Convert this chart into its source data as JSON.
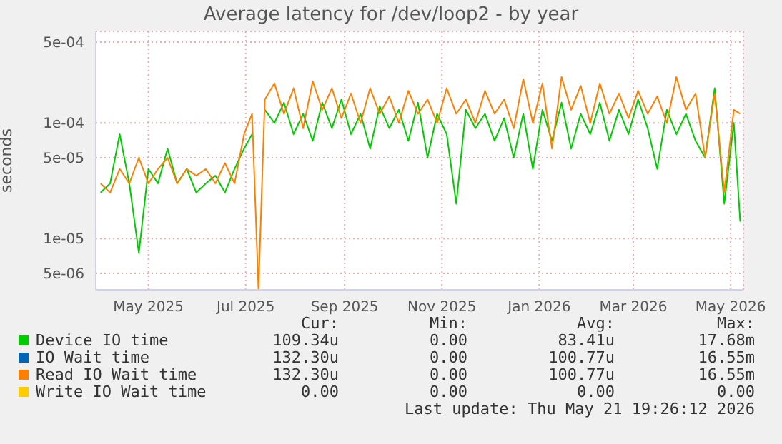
{
  "chart_data": {
    "type": "line",
    "title": "Average latency for /dev/loop2 - by year",
    "ylabel": "seconds",
    "log": "y",
    "grid": true,
    "legend": "bottom",
    "marker": "none",
    "x": [
      "2025-04-01",
      "2025-04-07",
      "2025-04-13",
      "2025-04-19",
      "2025-04-25",
      "2025-05-01",
      "2025-05-07",
      "2025-05-13",
      "2025-05-19",
      "2025-05-25",
      "2025-05-31",
      "2025-06-06",
      "2025-06-12",
      "2025-06-18",
      "2025-06-24",
      "2025-06-30",
      "2025-07-05",
      "2025-07-09",
      "2025-07-13",
      "2025-07-19",
      "2025-07-25",
      "2025-07-31",
      "2025-08-06",
      "2025-08-12",
      "2025-08-18",
      "2025-08-24",
      "2025-08-30",
      "2025-09-05",
      "2025-09-11",
      "2025-09-17",
      "2025-09-23",
      "2025-09-29",
      "2025-10-05",
      "2025-10-11",
      "2025-10-17",
      "2025-10-23",
      "2025-10-29",
      "2025-11-04",
      "2025-11-10",
      "2025-11-16",
      "2025-11-22",
      "2025-11-28",
      "2025-12-04",
      "2025-12-10",
      "2025-12-16",
      "2025-12-22",
      "2025-12-28",
      "2026-01-03",
      "2026-01-09",
      "2026-01-15",
      "2026-01-21",
      "2026-01-27",
      "2026-02-02",
      "2026-02-08",
      "2026-02-14",
      "2026-02-20",
      "2026-02-26",
      "2026-03-04",
      "2026-03-10",
      "2026-03-16",
      "2026-03-22",
      "2026-03-28",
      "2026-04-03",
      "2026-04-09",
      "2026-04-15",
      "2026-04-21",
      "2026-04-27",
      "2026-05-03",
      "2026-05-07"
    ],
    "xlim": [
      "2025-03-29",
      "2026-05-09"
    ],
    "xticks": [
      {
        "value": "2025-05-01",
        "label": "May 2025"
      },
      {
        "value": "2025-07-01",
        "label": "Jul 2025"
      },
      {
        "value": "2025-09-01",
        "label": "Sep 2025"
      },
      {
        "value": "2025-11-01",
        "label": "Nov 2025"
      },
      {
        "value": "2026-01-01",
        "label": "Jan 2026"
      },
      {
        "value": "2026-03-01",
        "label": "Mar 2026"
      },
      {
        "value": "2026-05-01",
        "label": "May 2026"
      }
    ],
    "ylim": [
      3.6e-06,
      0.00062
    ],
    "yticks": [
      {
        "value": 5e-06,
        "label": "5e-06"
      },
      {
        "value": 1e-05,
        "label": "1e-05"
      },
      {
        "value": 5e-05,
        "label": "5e-05"
      },
      {
        "value": 0.0001,
        "label": "1e-04"
      },
      {
        "value": 0.0005,
        "label": "5e-04"
      }
    ],
    "series": [
      {
        "name": "Device IO time",
        "color": "#00cc00",
        "values": [
          2.5e-05,
          3e-05,
          8e-05,
          3e-05,
          7.5e-06,
          4e-05,
          3e-05,
          6e-05,
          3e-05,
          4e-05,
          2.5e-05,
          3e-05,
          3.5e-05,
          2.5e-05,
          4e-05,
          6e-05,
          8e-05,
          null,
          0.00013,
          0.0001,
          0.00015,
          8e-05,
          0.00012,
          7e-05,
          0.00015,
          9e-05,
          0.00016,
          8e-05,
          0.00012,
          6e-05,
          0.00014,
          9e-05,
          0.00013,
          7e-05,
          0.00015,
          5e-05,
          0.00012,
          8e-05,
          2e-05,
          0.00013,
          9e-05,
          0.00012,
          7e-05,
          0.00011,
          5e-05,
          0.00012,
          4e-05,
          0.00013,
          7e-05,
          0.00015,
          6e-05,
          0.00012,
          8e-05,
          0.00015,
          7e-05,
          0.00013,
          8e-05,
          0.00016,
          9e-05,
          4e-05,
          0.00013,
          8e-05,
          0.00012,
          7e-05,
          5e-05,
          0.0002,
          2e-05,
          0.0001,
          1.4e-05
        ]
      },
      {
        "name": "IO Wait time",
        "color": "#0066b3",
        "values": [
          null,
          null,
          null,
          null,
          null,
          null,
          null,
          null,
          null,
          null,
          null,
          null,
          null,
          null,
          null,
          null,
          null,
          null,
          null,
          null,
          null,
          null,
          null,
          null,
          null,
          null,
          null,
          null,
          null,
          null,
          null,
          null,
          null,
          null,
          null,
          null,
          null,
          null,
          null,
          null,
          null,
          null,
          null,
          null,
          null,
          null,
          null,
          null,
          null,
          null,
          null,
          null,
          null,
          null,
          null,
          null,
          null,
          null,
          null,
          null,
          null,
          null,
          null,
          null,
          null,
          null,
          null,
          null,
          null
        ]
      },
      {
        "name": "Read IO Wait time",
        "color": "#ff8000",
        "values": [
          3e-05,
          2.5e-05,
          4e-05,
          3e-05,
          5e-05,
          3e-05,
          4e-05,
          5e-05,
          3e-05,
          4e-05,
          3.5e-05,
          4e-05,
          3e-05,
          4.5e-05,
          3e-05,
          8e-05,
          0.00012,
          3.6e-06,
          0.00016,
          0.00022,
          0.00012,
          0.0002,
          9e-05,
          0.00023,
          0.00013,
          0.0002,
          0.00011,
          0.00018,
          0.0001,
          0.0002,
          0.00012,
          0.00017,
          0.0001,
          0.00019,
          0.00012,
          0.00016,
          0.0001,
          0.0002,
          0.00012,
          0.00016,
          0.0001,
          0.00019,
          0.00012,
          0.00016,
          9e-05,
          0.00024,
          0.0001,
          0.00022,
          6e-05,
          0.00025,
          0.00013,
          0.00021,
          0.0001,
          0.00022,
          0.00012,
          0.00018,
          0.00011,
          0.00019,
          0.00012,
          0.00017,
          0.0001,
          0.00025,
          0.00013,
          0.00018,
          5e-05,
          0.00018,
          2.5e-05,
          0.00013,
          0.00012
        ]
      },
      {
        "name": "Write IO Wait time",
        "color": "#ffcc00",
        "values": [
          null,
          null,
          null,
          null,
          null,
          null,
          null,
          null,
          null,
          null,
          null,
          null,
          null,
          null,
          null,
          null,
          null,
          null,
          null,
          null,
          null,
          null,
          null,
          null,
          null,
          null,
          null,
          null,
          null,
          null,
          null,
          null,
          null,
          null,
          null,
          null,
          null,
          null,
          null,
          null,
          null,
          null,
          null,
          null,
          null,
          null,
          null,
          null,
          null,
          null,
          null,
          null,
          null,
          null,
          null,
          null,
          null,
          null,
          null,
          null,
          null,
          null,
          null,
          null,
          null,
          null,
          null,
          null,
          null
        ]
      }
    ],
    "annotations": [
      "Cur:",
      "Min:",
      "Avg:",
      "Max:",
      "109.34u",
      "0.00",
      "83.41u",
      "17.68m",
      "132.30u",
      "0.00",
      "100.77u",
      "16.55m",
      "132.30u",
      "0.00",
      "100.77u",
      "16.55m",
      "0.00",
      "0.00",
      "0.00",
      "0.00",
      "Last update: Thu May 21 19:26:12 2026"
    ]
  }
}
